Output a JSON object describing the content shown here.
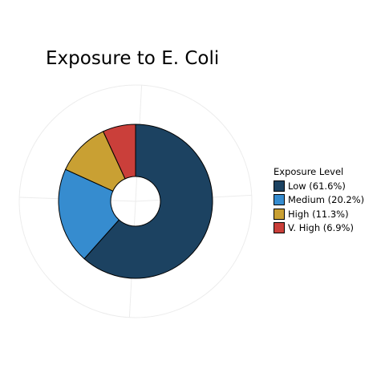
{
  "chart_data": {
    "type": "pie",
    "title": "Exposure to E. Coli",
    "legend_title": "Exposure Level",
    "legend_position": "right",
    "categories": [
      "Low",
      "Medium",
      "High",
      "V. High"
    ],
    "values": [
      61.6,
      20.2,
      11.3,
      6.9
    ],
    "labels": [
      "Low (61.6%)",
      "Medium (20.2%)",
      "High (11.3%)",
      "V. High (6.9%)"
    ],
    "colors": [
      "#1c4261",
      "#368ccf",
      "#c9a033",
      "#ca3f3a"
    ],
    "style": "donut"
  }
}
